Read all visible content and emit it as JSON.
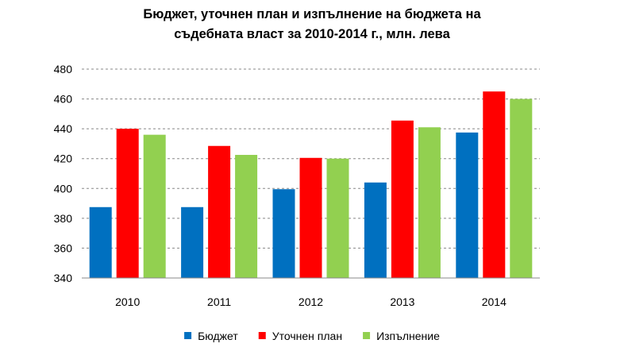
{
  "chart_data": {
    "type": "bar",
    "title_lines": [
      "Бюджет, уточнен план и изпълнение на бюджета на",
      "съдебната власт за 2010-2014 г., млн. лева"
    ],
    "categories": [
      "2010",
      "2011",
      "2012",
      "2013",
      "2014"
    ],
    "series": [
      {
        "name": "Бюджет",
        "color": "#0070C0",
        "values": [
          387.5,
          387.5,
          399.5,
          404,
          437.5
        ]
      },
      {
        "name": "Уточнен план",
        "color": "#FF0000",
        "values": [
          440,
          428.5,
          420.5,
          445.5,
          465
        ]
      },
      {
        "name": "Изпълнение",
        "color": "#92D050",
        "values": [
          436,
          422.5,
          420,
          441,
          460
        ]
      }
    ],
    "ylim": [
      340,
      480
    ],
    "yticks": [
      340,
      360,
      380,
      400,
      420,
      440,
      460,
      480
    ],
    "grid": true,
    "legend": "bottom"
  }
}
